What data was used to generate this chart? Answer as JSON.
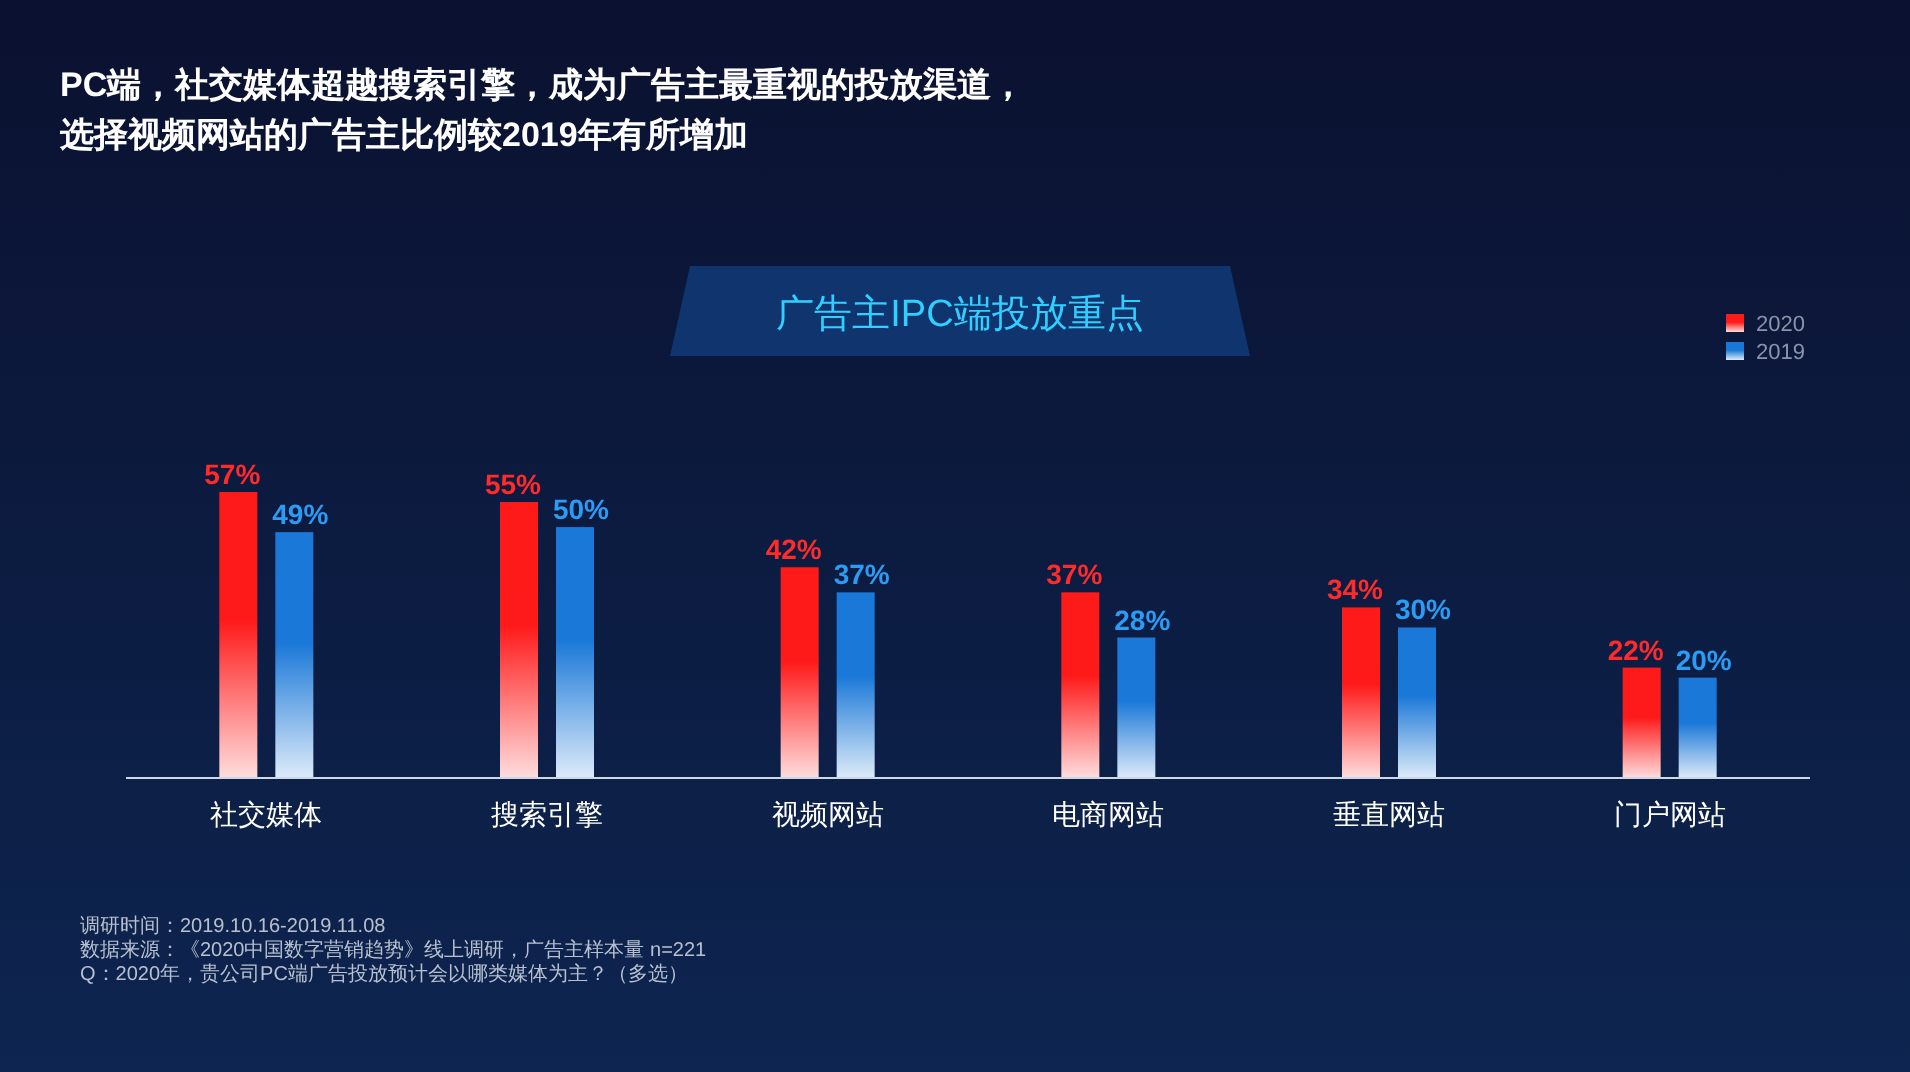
{
  "chart_data": {
    "type": "bar",
    "title": "PC端，社交媒体超越搜索引擎，成为广告主最重视的投放渠道，",
    "subtitle": "选择视频网站的广告主比例较2019年有所增加",
    "legend_title": "广告主IPC端投放重点",
    "categories": [
      "社交媒体",
      "搜索引擎",
      "视频网站",
      "电商网站",
      "垂直网站",
      "门户网站"
    ],
    "series": [
      {
        "name": "2020",
        "color": "#ff1a1a",
        "values": [
          57,
          55,
          42,
          37,
          34,
          22
        ],
        "value_labels": [
          "57%",
          "55%",
          "42%",
          "37%",
          "34%",
          "22%"
        ]
      },
      {
        "name": "2019",
        "color": "#1a78d8",
        "values": [
          49,
          50,
          37,
          28,
          30,
          20
        ],
        "value_labels": [
          "49%",
          "50%",
          "37%",
          "28%",
          "30%",
          "20%"
        ]
      }
    ],
    "legend": "top right",
    "annotations": [
      "调研时间：2019.10.16-2019.11.08",
      "数据来源：《2020中国数字营销趋势》线上调研，广告主样本量 n=221",
      "Q：2020年，贵公司PC端广告投放预计会以哪类媒体为主？（多选）"
    ]
  }
}
